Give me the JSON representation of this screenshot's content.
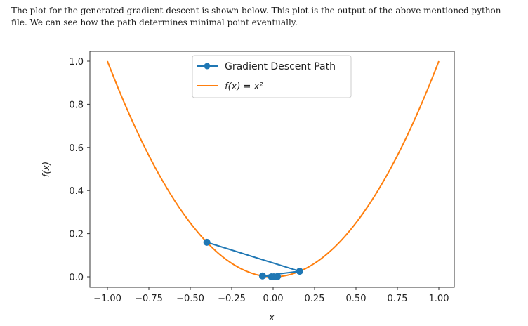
{
  "document": {
    "paragraph_line1": "The plot for the generated gradient descent is shown below. This plot is the output of the above mentioned python",
    "paragraph_line2": "file. We can see how the path determines minimal point eventually."
  },
  "chart_data": {
    "type": "line",
    "xlabel": "x",
    "ylabel": "f(x)",
    "xlim": [
      -1.0,
      1.0
    ],
    "ylim": [
      0.0,
      1.0
    ],
    "xticks": [
      "-1.00",
      "-0.75",
      "-0.50",
      "-0.25",
      "0.00",
      "0.25",
      "0.50",
      "0.75",
      "1.00"
    ],
    "yticks": [
      "0.0",
      "0.2",
      "0.4",
      "0.6",
      "0.8",
      "1.0"
    ],
    "legend_position": "top-center",
    "series": [
      {
        "name": "Gradient Descent Path",
        "color": "#1f77b4",
        "marker": "circle",
        "x": [
          -0.4,
          0.16,
          -0.064,
          0.0256,
          -0.01024,
          0.004096
        ],
        "y": [
          0.16,
          0.0256,
          0.0041,
          0.00066,
          0.0001,
          1.68e-05
        ]
      },
      {
        "name": "f(x) = x²",
        "color": "#ff7f0e",
        "function": "x^2",
        "x_range": [
          -1.0,
          1.0
        ]
      }
    ]
  }
}
